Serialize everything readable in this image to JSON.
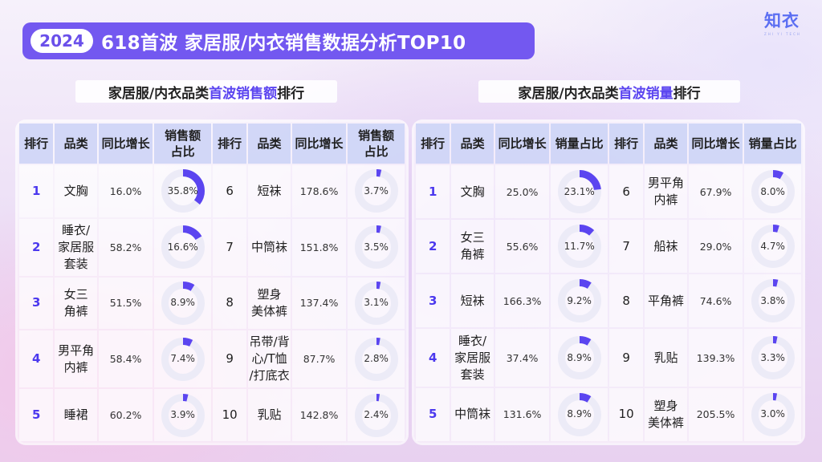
{
  "header": {
    "year": "2024",
    "title": "618首波 家居服/内衣销售数据分析TOP10"
  },
  "logo": {
    "text": "知衣",
    "sub": "ZHI YI TECH"
  },
  "colors": {
    "accent": "#5b45f0",
    "header_bg": "#7358f0",
    "donut_track": "#ecebf7"
  },
  "chart_data": [
    {
      "type": "table",
      "title": {
        "pre": "家居服/内衣品类",
        "hl": "首波销售额",
        "post": "排行"
      },
      "columns": [
        "排行",
        "品类",
        "同比增长",
        "销售额\n占比",
        "排行",
        "品类",
        "同比增长",
        "销售额\n占比"
      ],
      "rows": [
        {
          "rank": "1",
          "category": "文胸",
          "yoy": "16.0%",
          "share": 35.8,
          "share_label": "35.8%"
        },
        {
          "rank": "2",
          "category": "睡衣/\n家居服\n套装",
          "yoy": "58.2%",
          "share": 16.6,
          "share_label": "16.6%"
        },
        {
          "rank": "3",
          "category": "女三\n角裤",
          "yoy": "51.5%",
          "share": 8.9,
          "share_label": "8.9%"
        },
        {
          "rank": "4",
          "category": "男平角\n内裤",
          "yoy": "58.4%",
          "share": 7.4,
          "share_label": "7.4%"
        },
        {
          "rank": "5",
          "category": "睡裙",
          "yoy": "60.2%",
          "share": 3.9,
          "share_label": "3.9%"
        },
        {
          "rank": "6",
          "category": "短袜",
          "yoy": "178.6%",
          "share": 3.7,
          "share_label": "3.7%"
        },
        {
          "rank": "7",
          "category": "中筒袜",
          "yoy": "151.8%",
          "share": 3.5,
          "share_label": "3.5%"
        },
        {
          "rank": "8",
          "category": "塑身\n美体裤",
          "yoy": "137.4%",
          "share": 3.1,
          "share_label": "3.1%"
        },
        {
          "rank": "9",
          "category": "吊带/背\n心/T恤\n/打底衣",
          "yoy": "87.7%",
          "share": 2.8,
          "share_label": "2.8%"
        },
        {
          "rank": "10",
          "category": "乳贴",
          "yoy": "142.8%",
          "share": 2.4,
          "share_label": "2.4%"
        }
      ]
    },
    {
      "type": "table",
      "title": {
        "pre": "家居服/内衣品类",
        "hl": "首波销量",
        "post": "排行"
      },
      "columns": [
        "排行",
        "品类",
        "同比增长",
        "销量占比",
        "排行",
        "品类",
        "同比增长",
        "销量占比"
      ],
      "rows": [
        {
          "rank": "1",
          "category": "文胸",
          "yoy": "25.0%",
          "share": 23.1,
          "share_label": "23.1%"
        },
        {
          "rank": "2",
          "category": "女三\n角裤",
          "yoy": "55.6%",
          "share": 11.7,
          "share_label": "11.7%"
        },
        {
          "rank": "3",
          "category": "短袜",
          "yoy": "166.3%",
          "share": 9.2,
          "share_label": "9.2%"
        },
        {
          "rank": "4",
          "category": "睡衣/\n家居服\n套装",
          "yoy": "37.4%",
          "share": 8.9,
          "share_label": "8.9%"
        },
        {
          "rank": "5",
          "category": "中筒袜",
          "yoy": "131.6%",
          "share": 8.9,
          "share_label": "8.9%"
        },
        {
          "rank": "6",
          "category": "男平角\n内裤",
          "yoy": "67.9%",
          "share": 8.0,
          "share_label": "8.0%"
        },
        {
          "rank": "7",
          "category": "船袜",
          "yoy": "29.0%",
          "share": 4.7,
          "share_label": "4.7%"
        },
        {
          "rank": "8",
          "category": "平角裤",
          "yoy": "74.6%",
          "share": 3.8,
          "share_label": "3.8%"
        },
        {
          "rank": "9",
          "category": "乳贴",
          "yoy": "139.3%",
          "share": 3.3,
          "share_label": "3.3%"
        },
        {
          "rank": "10",
          "category": "塑身\n美体裤",
          "yoy": "205.5%",
          "share": 3.0,
          "share_label": "3.0%"
        }
      ]
    }
  ]
}
